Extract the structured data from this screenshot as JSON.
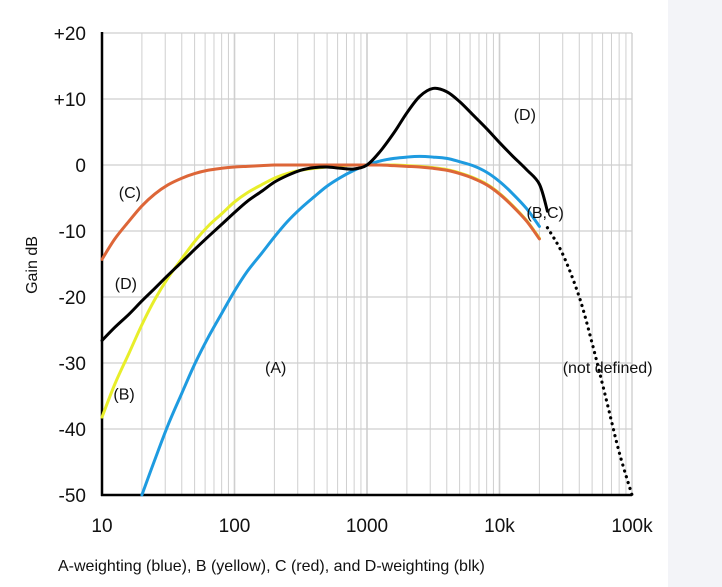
{
  "chart_data": {
    "type": "line",
    "title": "",
    "xlabel": "",
    "ylabel": "Gain dB",
    "caption": "A-weighting (blue), B (yellow), C (red), and D-weighting (blk)",
    "x_scale": "log",
    "xlim": [
      10,
      100000
    ],
    "ylim": [
      -50,
      20
    ],
    "grid": true,
    "x_ticks": [
      {
        "value": 10,
        "label": "10"
      },
      {
        "value": 100,
        "label": "100"
      },
      {
        "value": 1000,
        "label": "1000"
      },
      {
        "value": 10000,
        "label": "10k"
      },
      {
        "value": 100000,
        "label": "100k"
      }
    ],
    "y_ticks": [
      {
        "value": 20,
        "label": "+20"
      },
      {
        "value": 10,
        "label": "+10"
      },
      {
        "value": 0,
        "label": "0"
      },
      {
        "value": -10,
        "label": "-10"
      },
      {
        "value": -20,
        "label": "-20"
      },
      {
        "value": -30,
        "label": "-30"
      },
      {
        "value": -40,
        "label": "-40"
      },
      {
        "value": -50,
        "label": "-50"
      }
    ],
    "series": [
      {
        "name": "",
        "label": "(A)",
        "color": "#1e9be0",
        "style": "solid",
        "points": [
          [
            20,
            -50
          ],
          [
            25,
            -44.7
          ],
          [
            31.5,
            -39.4
          ],
          [
            40,
            -34.6
          ],
          [
            50,
            -30.2
          ],
          [
            63,
            -26.2
          ],
          [
            80,
            -22.5
          ],
          [
            100,
            -19.1
          ],
          [
            125,
            -16.1
          ],
          [
            160,
            -13.4
          ],
          [
            200,
            -10.9
          ],
          [
            250,
            -8.6
          ],
          [
            315,
            -6.6
          ],
          [
            400,
            -4.8
          ],
          [
            500,
            -3.2
          ],
          [
            630,
            -1.9
          ],
          [
            800,
            -0.8
          ],
          [
            1000,
            0
          ],
          [
            1250,
            0.6
          ],
          [
            1600,
            1.0
          ],
          [
            2000,
            1.2
          ],
          [
            2500,
            1.3
          ],
          [
            3150,
            1.2
          ],
          [
            4000,
            1.0
          ],
          [
            5000,
            0.5
          ],
          [
            6300,
            -0.1
          ],
          [
            8000,
            -1.1
          ],
          [
            10000,
            -2.5
          ],
          [
            12500,
            -4.3
          ],
          [
            16000,
            -6.6
          ],
          [
            20000,
            -9.3
          ]
        ],
        "label_pos": [
          170,
          -31.5
        ]
      },
      {
        "name": "",
        "label": "(B)",
        "color": "#e8ee2a",
        "style": "solid",
        "points": [
          [
            10,
            -38.2
          ],
          [
            12.5,
            -33.2
          ],
          [
            16,
            -28.5
          ],
          [
            20,
            -24.2
          ],
          [
            25,
            -20.4
          ],
          [
            31.5,
            -17.1
          ],
          [
            40,
            -14.2
          ],
          [
            50,
            -11.6
          ],
          [
            63,
            -9.3
          ],
          [
            80,
            -7.4
          ],
          [
            100,
            -5.6
          ],
          [
            125,
            -4.2
          ],
          [
            160,
            -3.0
          ],
          [
            200,
            -2.0
          ],
          [
            250,
            -1.3
          ],
          [
            315,
            -0.8
          ],
          [
            400,
            -0.5
          ],
          [
            500,
            -0.3
          ],
          [
            630,
            -0.1
          ],
          [
            800,
            0
          ],
          [
            1000,
            0
          ],
          [
            1250,
            0
          ],
          [
            1600,
            0
          ],
          [
            2000,
            -0.1
          ],
          [
            2500,
            -0.2
          ],
          [
            3150,
            -0.4
          ],
          [
            4000,
            -0.7
          ],
          [
            5000,
            -1.2
          ],
          [
            6300,
            -1.9
          ],
          [
            8000,
            -2.9
          ],
          [
            10000,
            -4.3
          ],
          [
            12500,
            -6.1
          ],
          [
            16000,
            -8.4
          ],
          [
            20000,
            -11.1
          ]
        ],
        "label_pos": [
          12.2,
          -35.5
        ]
      },
      {
        "name": "",
        "label": "(C)",
        "color": "#dd6638",
        "style": "solid",
        "points": [
          [
            10,
            -14.3
          ],
          [
            12.5,
            -11.2
          ],
          [
            16,
            -8.5
          ],
          [
            20,
            -6.2
          ],
          [
            25,
            -4.4
          ],
          [
            31.5,
            -3.0
          ],
          [
            40,
            -2.0
          ],
          [
            50,
            -1.3
          ],
          [
            63,
            -0.8
          ],
          [
            80,
            -0.5
          ],
          [
            100,
            -0.3
          ],
          [
            125,
            -0.2
          ],
          [
            160,
            -0.1
          ],
          [
            200,
            0
          ],
          [
            250,
            0
          ],
          [
            315,
            0
          ],
          [
            400,
            0
          ],
          [
            500,
            0
          ],
          [
            630,
            0
          ],
          [
            800,
            0
          ],
          [
            1000,
            0
          ],
          [
            1250,
            0
          ],
          [
            1600,
            -0.1
          ],
          [
            2000,
            -0.2
          ],
          [
            2500,
            -0.3
          ],
          [
            3150,
            -0.5
          ],
          [
            4000,
            -0.8
          ],
          [
            5000,
            -1.3
          ],
          [
            6300,
            -2.0
          ],
          [
            8000,
            -3.0
          ],
          [
            10000,
            -4.4
          ],
          [
            12500,
            -6.2
          ],
          [
            16000,
            -8.5
          ],
          [
            20000,
            -11.2
          ]
        ],
        "label_pos": [
          13.4,
          -5
        ]
      },
      {
        "name": "",
        "label": "(D)",
        "color": "#000000",
        "style": "solid",
        "points": [
          [
            10,
            -26.6
          ],
          [
            12.5,
            -24.6
          ],
          [
            16,
            -22.6
          ],
          [
            20,
            -20.6
          ],
          [
            25,
            -18.7
          ],
          [
            31.5,
            -16.7
          ],
          [
            40,
            -14.7
          ],
          [
            50,
            -12.8
          ],
          [
            63,
            -10.9
          ],
          [
            80,
            -9.0
          ],
          [
            100,
            -7.2
          ],
          [
            125,
            -5.5
          ],
          [
            160,
            -4.0
          ],
          [
            200,
            -2.6
          ],
          [
            250,
            -1.6
          ],
          [
            315,
            -0.8
          ],
          [
            400,
            -0.4
          ],
          [
            500,
            -0.3
          ],
          [
            630,
            -0.5
          ],
          [
            800,
            -0.6
          ],
          [
            1000,
            0
          ],
          [
            1250,
            2.0
          ],
          [
            1600,
            4.9
          ],
          [
            2000,
            7.9
          ],
          [
            2500,
            10.4
          ],
          [
            3150,
            11.6
          ],
          [
            4000,
            11.1
          ],
          [
            5000,
            9.6
          ],
          [
            6300,
            7.6
          ],
          [
            8000,
            5.5
          ],
          [
            10000,
            3.4
          ],
          [
            12500,
            1.4
          ],
          [
            16000,
            -0.7
          ],
          [
            20000,
            -2.9
          ],
          [
            23000,
            -7.0
          ]
        ],
        "label_pos": [
          12.5,
          -18.8
        ]
      },
      {
        "name": "",
        "label": "(not defined)",
        "color": "#000000",
        "style": "dotted",
        "points": [
          [
            23000,
            -9.5
          ],
          [
            30000,
            -13.5
          ],
          [
            40000,
            -20.0
          ],
          [
            50000,
            -27.0
          ],
          [
            63000,
            -35.0
          ],
          [
            80000,
            -43.5
          ],
          [
            100000,
            -50
          ]
        ],
        "label_pos": [
          30000,
          -31.5
        ]
      }
    ],
    "annotations": [
      {
        "text": "(D)",
        "x": 12800,
        "y": 6.8
      },
      {
        "text": "(B,C)",
        "x": 16000,
        "y": -8
      }
    ]
  }
}
